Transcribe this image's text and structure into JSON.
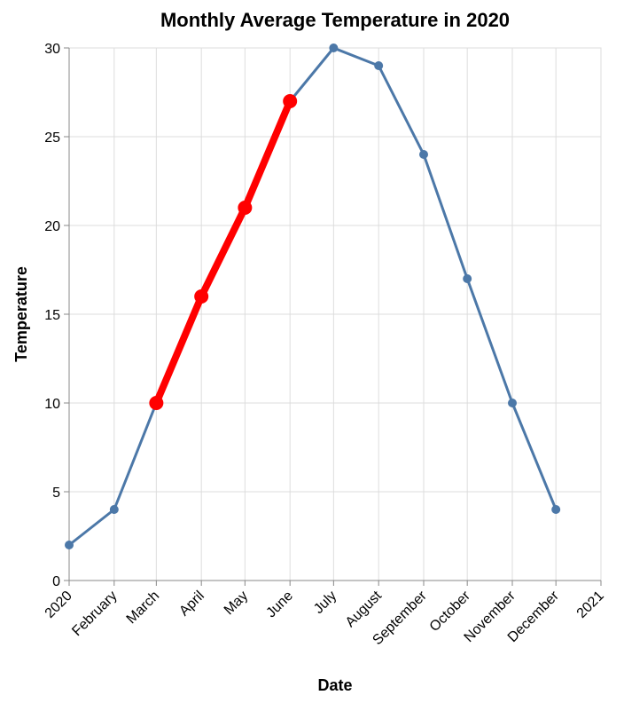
{
  "chart_data": {
    "type": "line",
    "title": "Monthly Average Temperature in 2020",
    "xlabel": "Date",
    "ylabel": "Temperature",
    "ylim": [
      0,
      30
    ],
    "yticks": [
      0,
      5,
      10,
      15,
      20,
      25,
      30
    ],
    "xlim": [
      "2020-01-01",
      "2021-01-01"
    ],
    "xticks": [
      {
        "date": "2020-01-01",
        "label": "2020"
      },
      {
        "date": "2020-02-01",
        "label": "February"
      },
      {
        "date": "2020-03-01",
        "label": "March"
      },
      {
        "date": "2020-04-01",
        "label": "April"
      },
      {
        "date": "2020-05-01",
        "label": "May"
      },
      {
        "date": "2020-06-01",
        "label": "June"
      },
      {
        "date": "2020-07-01",
        "label": "July"
      },
      {
        "date": "2020-08-01",
        "label": "August"
      },
      {
        "date": "2020-09-01",
        "label": "September"
      },
      {
        "date": "2020-10-01",
        "label": "October"
      },
      {
        "date": "2020-11-01",
        "label": "November"
      },
      {
        "date": "2020-12-01",
        "label": "December"
      },
      {
        "date": "2021-01-01",
        "label": "2021"
      }
    ],
    "grid": true,
    "series": [
      {
        "color": "#4c78a8",
        "points": [
          {
            "x": "2020-01-01",
            "y": 2
          },
          {
            "x": "2020-02-01",
            "y": 4
          },
          {
            "x": "2020-03-01",
            "y": 10
          },
          {
            "x": "2020-04-01",
            "y": 16
          },
          {
            "x": "2020-05-01",
            "y": 21
          },
          {
            "x": "2020-06-01",
            "y": 27
          },
          {
            "x": "2020-07-01",
            "y": 30
          },
          {
            "x": "2020-08-01",
            "y": 29
          },
          {
            "x": "2020-09-01",
            "y": 24
          },
          {
            "x": "2020-10-01",
            "y": 17
          },
          {
            "x": "2020-11-01",
            "y": 10
          },
          {
            "x": "2020-12-01",
            "y": 4
          }
        ]
      },
      {
        "color": "#ff0000",
        "highlight": true,
        "points": [
          {
            "x": "2020-03-01",
            "y": 10
          },
          {
            "x": "2020-04-01",
            "y": 16
          },
          {
            "x": "2020-05-01",
            "y": 21
          },
          {
            "x": "2020-06-01",
            "y": 27
          }
        ]
      }
    ]
  }
}
